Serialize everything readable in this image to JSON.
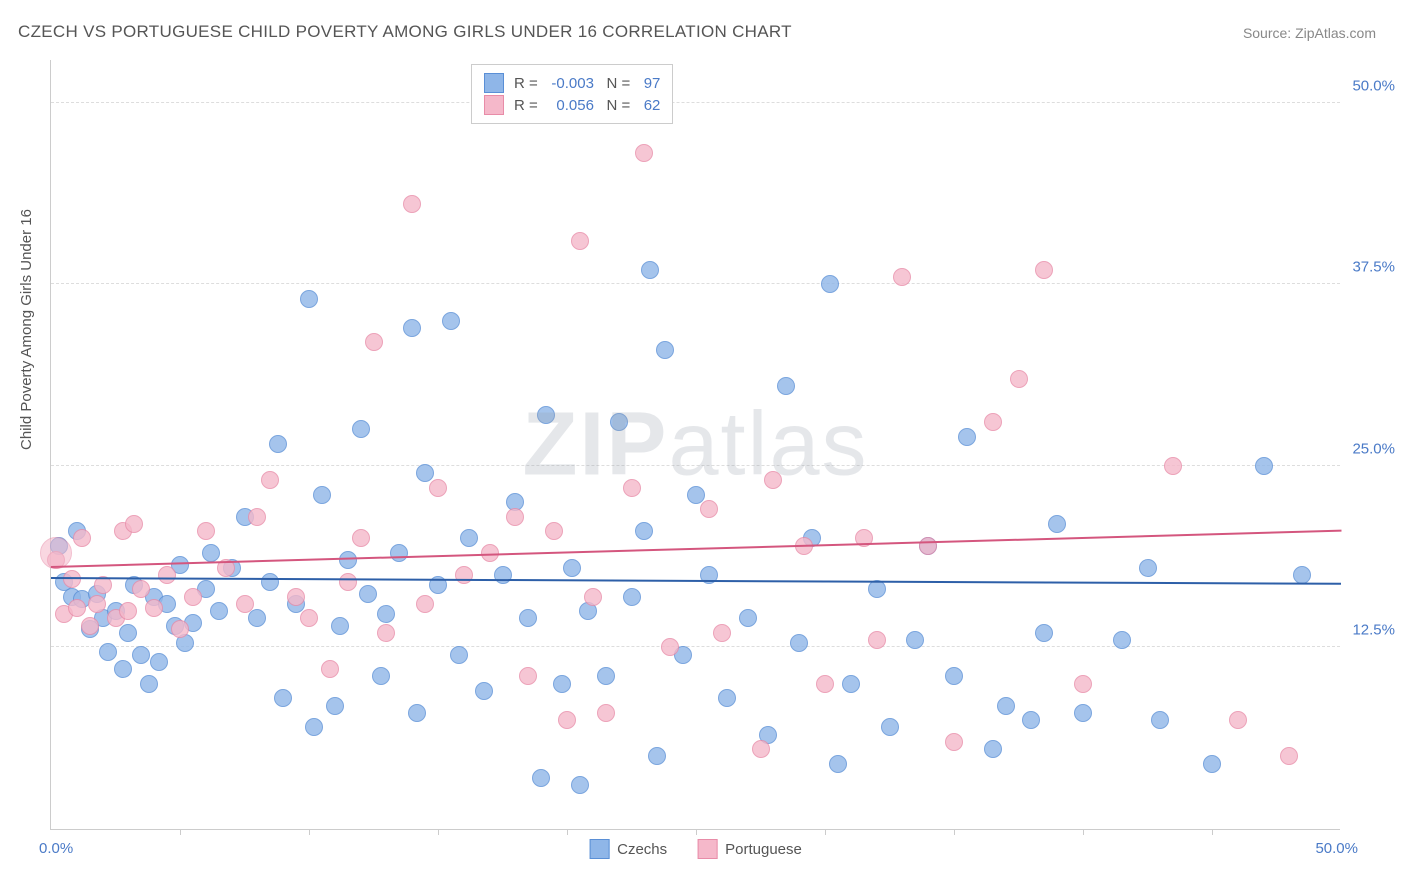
{
  "title": "CZECH VS PORTUGUESE CHILD POVERTY AMONG GIRLS UNDER 16 CORRELATION CHART",
  "source": "Source: ZipAtlas.com",
  "watermark_part1": "ZIP",
  "watermark_part2": "atlas",
  "y_axis_label": "Child Poverty Among Girls Under 16",
  "chart": {
    "type": "scatter",
    "xlim": [
      0,
      50
    ],
    "ylim": [
      0,
      53
    ],
    "x_min_label": "0.0%",
    "x_max_label": "50.0%",
    "y_grid": [
      {
        "value": 12.5,
        "label": "12.5%"
      },
      {
        "value": 25.0,
        "label": "25.0%"
      },
      {
        "value": 37.5,
        "label": "37.5%"
      },
      {
        "value": 50.0,
        "label": "50.0%"
      }
    ],
    "x_ticks": [
      5,
      10,
      15,
      20,
      25,
      30,
      35,
      40,
      45
    ],
    "background_color": "#ffffff",
    "grid_color": "#dddddd",
    "axis_color": "#cccccc",
    "tick_label_color": "#4a7ac7",
    "point_radius": 9,
    "point_fill_opacity": 0.45,
    "series": [
      {
        "name": "Czechs",
        "fill_color": "#8fb6e8",
        "stroke_color": "#5a8fd6",
        "trend_color": "#2d5fa8",
        "trend": {
          "y_start": 17.2,
          "y_end": 16.8
        },
        "stats": {
          "R": "-0.003",
          "N": "97"
        },
        "points": [
          [
            0.3,
            19.5
          ],
          [
            0.5,
            17.0
          ],
          [
            0.8,
            16.0
          ],
          [
            1.0,
            20.5
          ],
          [
            1.2,
            15.8
          ],
          [
            1.5,
            13.8
          ],
          [
            1.8,
            16.2
          ],
          [
            2.0,
            14.5
          ],
          [
            2.2,
            12.2
          ],
          [
            2.5,
            15.0
          ],
          [
            2.8,
            11.0
          ],
          [
            3.0,
            13.5
          ],
          [
            3.2,
            16.8
          ],
          [
            3.5,
            12.0
          ],
          [
            3.8,
            10.0
          ],
          [
            4.0,
            16.0
          ],
          [
            4.2,
            11.5
          ],
          [
            4.5,
            15.5
          ],
          [
            4.8,
            14.0
          ],
          [
            5.0,
            18.2
          ],
          [
            5.2,
            12.8
          ],
          [
            5.5,
            14.2
          ],
          [
            6.0,
            16.5
          ],
          [
            6.2,
            19.0
          ],
          [
            6.5,
            15.0
          ],
          [
            7.0,
            18.0
          ],
          [
            7.5,
            21.5
          ],
          [
            8.0,
            14.5
          ],
          [
            8.5,
            17.0
          ],
          [
            8.8,
            26.5
          ],
          [
            9.0,
            9.0
          ],
          [
            9.5,
            15.5
          ],
          [
            10.0,
            36.5
          ],
          [
            10.2,
            7.0
          ],
          [
            10.5,
            23.0
          ],
          [
            11.0,
            8.5
          ],
          [
            11.2,
            14.0
          ],
          [
            11.5,
            18.5
          ],
          [
            12.0,
            27.5
          ],
          [
            12.3,
            16.2
          ],
          [
            12.8,
            10.5
          ],
          [
            13.0,
            14.8
          ],
          [
            13.5,
            19.0
          ],
          [
            14.0,
            34.5
          ],
          [
            14.2,
            8.0
          ],
          [
            14.5,
            24.5
          ],
          [
            15.0,
            16.8
          ],
          [
            15.5,
            35.0
          ],
          [
            15.8,
            12.0
          ],
          [
            16.2,
            20.0
          ],
          [
            16.8,
            9.5
          ],
          [
            17.5,
            17.5
          ],
          [
            18.0,
            22.5
          ],
          [
            18.5,
            14.5
          ],
          [
            19.0,
            3.5
          ],
          [
            19.2,
            28.5
          ],
          [
            19.8,
            10.0
          ],
          [
            20.2,
            18.0
          ],
          [
            20.5,
            3.0
          ],
          [
            20.8,
            15.0
          ],
          [
            21.5,
            10.5
          ],
          [
            22.0,
            28.0
          ],
          [
            22.5,
            16.0
          ],
          [
            23.0,
            20.5
          ],
          [
            23.2,
            38.5
          ],
          [
            23.5,
            5.0
          ],
          [
            23.8,
            33.0
          ],
          [
            24.5,
            12.0
          ],
          [
            25.0,
            23.0
          ],
          [
            25.5,
            17.5
          ],
          [
            26.2,
            9.0
          ],
          [
            27.0,
            14.5
          ],
          [
            27.8,
            6.5
          ],
          [
            28.5,
            30.5
          ],
          [
            29.0,
            12.8
          ],
          [
            29.5,
            20.0
          ],
          [
            30.2,
            37.5
          ],
          [
            30.5,
            4.5
          ],
          [
            31.0,
            10.0
          ],
          [
            32.0,
            16.5
          ],
          [
            32.5,
            7.0
          ],
          [
            33.5,
            13.0
          ],
          [
            34.0,
            19.5
          ],
          [
            35.0,
            10.5
          ],
          [
            35.5,
            27.0
          ],
          [
            36.5,
            5.5
          ],
          [
            37.0,
            8.5
          ],
          [
            38.0,
            7.5
          ],
          [
            38.5,
            13.5
          ],
          [
            39.0,
            21.0
          ],
          [
            40.0,
            8.0
          ],
          [
            41.5,
            13.0
          ],
          [
            42.5,
            18.0
          ],
          [
            43.0,
            7.5
          ],
          [
            45.0,
            4.5
          ],
          [
            47.0,
            25.0
          ],
          [
            48.5,
            17.5
          ]
        ]
      },
      {
        "name": "Portuguese",
        "fill_color": "#f5b8ca",
        "stroke_color": "#e88ca8",
        "trend_color": "#d4567e",
        "trend": {
          "y_start": 18.0,
          "y_end": 20.5
        },
        "stats": {
          "R": "0.056",
          "N": "62"
        },
        "points": [
          [
            0.2,
            18.5
          ],
          [
            0.5,
            14.8
          ],
          [
            0.8,
            17.2
          ],
          [
            1.0,
            15.2
          ],
          [
            1.2,
            20.0
          ],
          [
            1.5,
            14.0
          ],
          [
            1.8,
            15.5
          ],
          [
            2.0,
            16.8
          ],
          [
            2.5,
            14.5
          ],
          [
            2.8,
            20.5
          ],
          [
            3.0,
            15.0
          ],
          [
            3.2,
            21.0
          ],
          [
            3.5,
            16.5
          ],
          [
            4.0,
            15.2
          ],
          [
            4.5,
            17.5
          ],
          [
            5.0,
            13.8
          ],
          [
            5.5,
            16.0
          ],
          [
            6.0,
            20.5
          ],
          [
            6.8,
            18.0
          ],
          [
            7.5,
            15.5
          ],
          [
            8.0,
            21.5
          ],
          [
            8.5,
            24.0
          ],
          [
            9.5,
            16.0
          ],
          [
            10.0,
            14.5
          ],
          [
            10.8,
            11.0
          ],
          [
            11.5,
            17.0
          ],
          [
            12.0,
            20.0
          ],
          [
            12.5,
            33.5
          ],
          [
            13.0,
            13.5
          ],
          [
            14.0,
            43.0
          ],
          [
            14.5,
            15.5
          ],
          [
            15.0,
            23.5
          ],
          [
            16.0,
            17.5
          ],
          [
            17.0,
            19.0
          ],
          [
            18.0,
            21.5
          ],
          [
            18.5,
            10.5
          ],
          [
            19.5,
            20.5
          ],
          [
            20.0,
            7.5
          ],
          [
            20.5,
            40.5
          ],
          [
            21.0,
            16.0
          ],
          [
            21.5,
            8.0
          ],
          [
            22.5,
            23.5
          ],
          [
            23.0,
            46.5
          ],
          [
            24.0,
            12.5
          ],
          [
            25.5,
            22.0
          ],
          [
            26.0,
            13.5
          ],
          [
            27.5,
            5.5
          ],
          [
            28.0,
            24.0
          ],
          [
            29.2,
            19.5
          ],
          [
            30.0,
            10.0
          ],
          [
            31.5,
            20.0
          ],
          [
            32.0,
            13.0
          ],
          [
            33.0,
            38.0
          ],
          [
            34.0,
            19.5
          ],
          [
            35.0,
            6.0
          ],
          [
            36.5,
            28.0
          ],
          [
            37.5,
            31.0
          ],
          [
            38.5,
            38.5
          ],
          [
            40.0,
            10.0
          ],
          [
            43.5,
            25.0
          ],
          [
            46.0,
            7.5
          ],
          [
            48.0,
            5.0
          ]
        ]
      }
    ]
  },
  "legend": {
    "item1": "Czechs",
    "item2": "Portuguese"
  }
}
